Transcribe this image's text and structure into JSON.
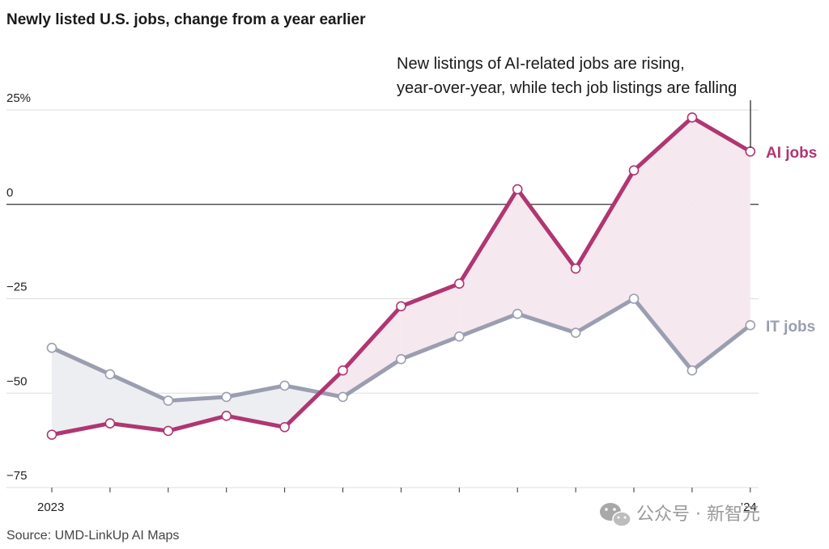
{
  "chart_data": {
    "type": "line",
    "title": "Newly listed U.S. jobs, change from a year earlier",
    "ytick_labels": [
      "25%",
      "0",
      "−25",
      "−50",
      "−75"
    ],
    "yticks": [
      25,
      0,
      -25,
      -50,
      -75
    ],
    "ylim": [
      -75,
      25
    ],
    "x_labels": [
      "2023",
      "’24"
    ],
    "x": [
      0,
      1,
      2,
      3,
      4,
      5,
      6,
      7,
      8,
      9,
      10,
      11,
      12
    ],
    "series": [
      {
        "name": "AI jobs",
        "color": "#b03672",
        "values": [
          -61,
          -58,
          -60,
          -56,
          -59,
          -44,
          -27,
          -21,
          4,
          -17,
          9,
          23,
          14
        ]
      },
      {
        "name": "IT jobs",
        "color": "#9a9eb0",
        "values": [
          -38,
          -45,
          -52,
          -51,
          -48,
          -51,
          -41,
          -35,
          -29,
          -34,
          -25,
          -44,
          -32
        ]
      }
    ],
    "annotation": {
      "lines": [
        "New listings of AI-related jobs are rising,",
        "year-over-year, while tech job listings are falling"
      ]
    },
    "grid": true,
    "zero_line": true,
    "fill_between": {
      "ai_above": "#f6e8ef",
      "it_above": "#edeef2"
    }
  },
  "source": "Source: UMD-LinkUp AI Maps",
  "watermark": {
    "icon": "wechat-icon",
    "text": "公众号 · 新智元"
  }
}
